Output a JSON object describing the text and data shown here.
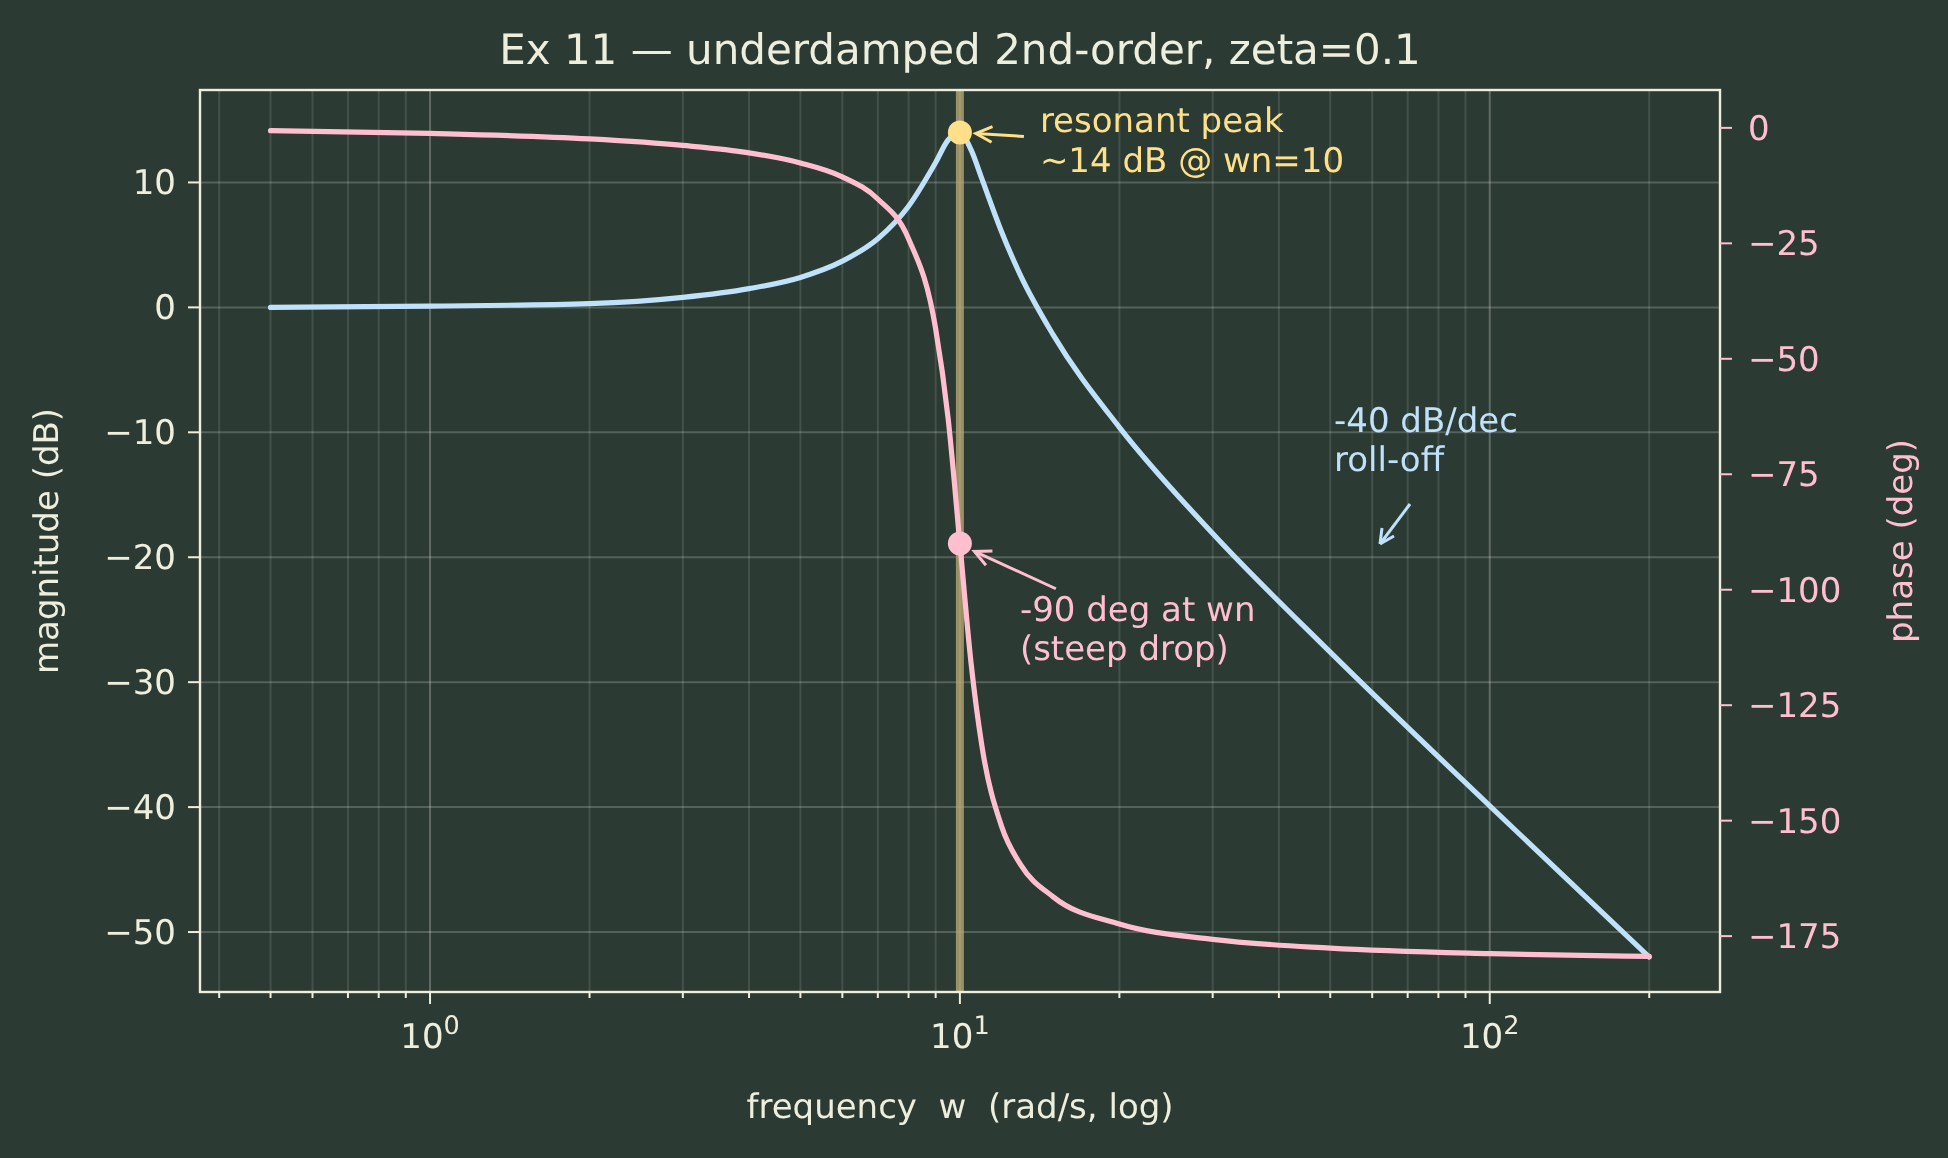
{
  "chart_data": {
    "type": "line",
    "title": "Ex 11 — underdamped 2nd-order, zeta=0.1",
    "xlabel": "frequency  w  (rad/s, log)",
    "ylabel": "magnitude (dB)",
    "y2label": "phase (deg)",
    "log": "x",
    "grid": true,
    "line_style": "solid",
    "xlim": [
      0.368,
      272
    ],
    "xticks": [
      {
        "value": 0.4,
        "label": null
      },
      {
        "value": 0.5,
        "label": null
      },
      {
        "value": 0.6,
        "label": null
      },
      {
        "value": 0.7,
        "label": null
      },
      {
        "value": 0.8,
        "label": null
      },
      {
        "value": 0.9,
        "label": null
      },
      {
        "value": 1,
        "label": "10$^{0}$"
      },
      {
        "value": 2,
        "label": null
      },
      {
        "value": 3,
        "label": null
      },
      {
        "value": 4,
        "label": null
      },
      {
        "value": 5,
        "label": null
      },
      {
        "value": 6,
        "label": null
      },
      {
        "value": 7,
        "label": null
      },
      {
        "value": 8,
        "label": null
      },
      {
        "value": 9,
        "label": null
      },
      {
        "value": 10,
        "label": "10$^{1}$"
      },
      {
        "value": 20,
        "label": null
      },
      {
        "value": 30,
        "label": null
      },
      {
        "value": 40,
        "label": null
      },
      {
        "value": 50,
        "label": null
      },
      {
        "value": 60,
        "label": null
      },
      {
        "value": 70,
        "label": null
      },
      {
        "value": 80,
        "label": null
      },
      {
        "value": 90,
        "label": null
      },
      {
        "value": 100,
        "label": "10$^{2}$"
      },
      {
        "value": 200,
        "label": null
      }
    ],
    "ylim": [
      -54.8,
      17.4
    ],
    "yticks": [
      10,
      0,
      -10,
      -20,
      -30,
      -40,
      -50
    ],
    "y2lim": [
      -187.1,
      8.2
    ],
    "y2ticks": [
      0,
      -25,
      -50,
      -75,
      -100,
      -125,
      -150,
      -175
    ],
    "series": [
      {
        "color": "#bfe1fa",
        "x": [
          0.5,
          1,
          2,
          3,
          4,
          5,
          6,
          7,
          8,
          9,
          9.5,
          10,
          10.5,
          11,
          12,
          13,
          15,
          20,
          30,
          50,
          100,
          200
        ],
        "values": [
          0.0,
          0.1,
          0.3,
          0.8,
          1.5,
          2.4,
          3.7,
          5.5,
          8.1,
          11.6,
          13.4,
          14.0,
          12.6,
          10.3,
          6.0,
          2.6,
          -2.2,
          -9.6,
          -18.1,
          -27.6,
          -39.9,
          -52.0
        ]
      },
      {
        "color": "#ffbfcf",
        "axis": "y2",
        "x": [
          0.5,
          1,
          2,
          3,
          4,
          5,
          6,
          7,
          8,
          9,
          9.5,
          10,
          10.5,
          11,
          12,
          13,
          15,
          20,
          30,
          50,
          100,
          200
        ],
        "values": [
          -0.6,
          -1.2,
          -2.4,
          -3.8,
          -5.4,
          -7.6,
          -10.6,
          -15.4,
          -24.0,
          -43.5,
          -62.8,
          -90.0,
          -116.0,
          -133.7,
          -151.4,
          -159.4,
          -166.5,
          -172.4,
          -175.7,
          -177.6,
          -178.8,
          -179.4
        ]
      },
      {
        "type": "scatter",
        "color": "#ffe08a",
        "x": [
          10
        ],
        "values": [
          14
        ]
      },
      {
        "type": "scatter",
        "color": "#ffbfcf",
        "axis": "y2",
        "x": [
          10
        ],
        "values": [
          -90
        ]
      }
    ],
    "ref_lines": [
      {
        "axis": "x",
        "value": 10,
        "color": "#b5a672"
      }
    ],
    "annotations": [
      {
        "text": "resonant peak\n~14 dB @ wn=10",
        "x": 10,
        "y": 14
      },
      {
        "text": "-90 deg at wn\n(steep drop)",
        "x": 10,
        "y": -19
      },
      "-40 dB/dec\nroll-off"
    ]
  }
}
